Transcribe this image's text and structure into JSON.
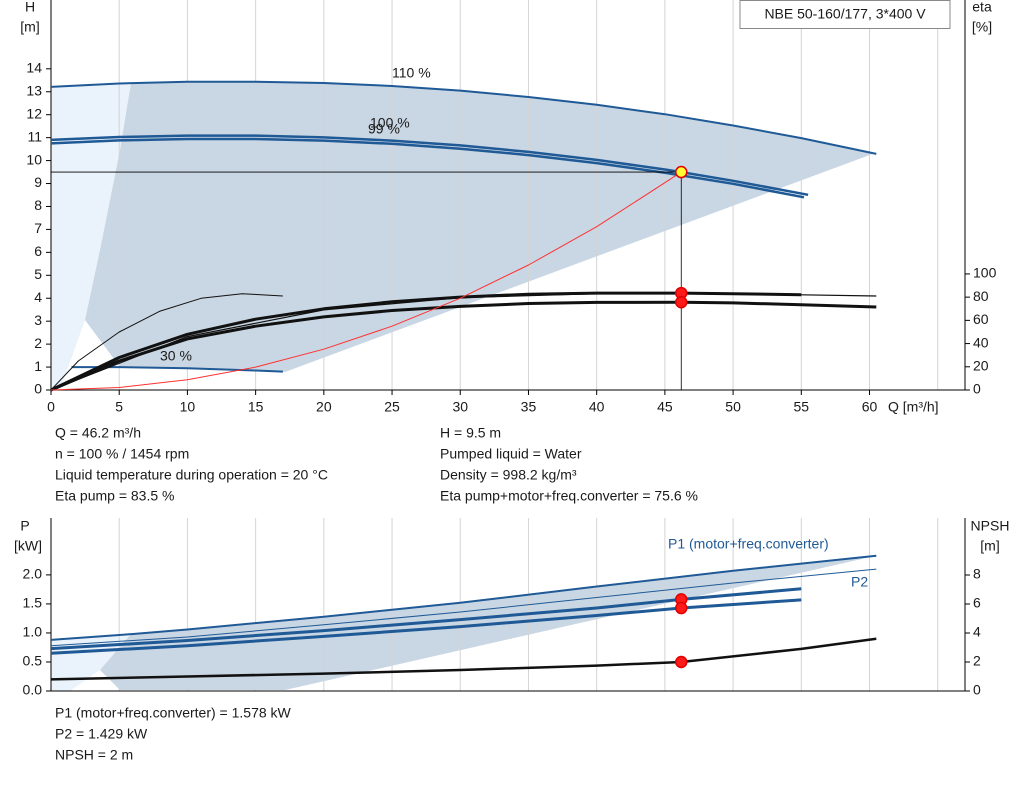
{
  "chart_data": [
    {
      "type": "line",
      "title": "NBE 50-160/177, 3*400 V",
      "x_label": "Q [m³/h]",
      "y_label": "H",
      "y_unit": "[m]",
      "y2_label": "eta",
      "y2_unit": "[%]",
      "xlim": [
        0,
        67
      ],
      "xticks": [
        0,
        5,
        10,
        15,
        20,
        25,
        30,
        35,
        40,
        45,
        50,
        55,
        60
      ],
      "xgrid": [
        5,
        10,
        15,
        20,
        25,
        30,
        35,
        40,
        45,
        50,
        55,
        60,
        65
      ],
      "ylim": [
        0,
        17
      ],
      "yticks": [
        0,
        1,
        2,
        3,
        4,
        5,
        6,
        7,
        8,
        9,
        10,
        11,
        12,
        13,
        14
      ],
      "y2lim": [
        0,
        336
      ],
      "y2ticks": [
        0,
        20,
        40,
        60,
        80,
        100
      ],
      "guide_lines": true,
      "series": [
        {
          "name": "110 %",
          "color": "#1f5a96",
          "x": [
            0,
            5,
            10,
            15,
            20,
            25,
            30,
            35,
            40,
            45,
            50,
            55,
            60.5
          ],
          "values": [
            13.21,
            13.36,
            13.44,
            13.44,
            13.38,
            13.25,
            13.05,
            12.77,
            12.43,
            12.02,
            11.53,
            10.98,
            10.29
          ]
        },
        {
          "name": "100 %",
          "color": "#1f5a96",
          "x": [
            0,
            5,
            10,
            15,
            20,
            25,
            30,
            35,
            40,
            45,
            46.2,
            50,
            55.5
          ],
          "values": [
            10.9,
            11.03,
            11.09,
            11.09,
            11.01,
            10.87,
            10.66,
            10.38,
            10.03,
            9.61,
            9.5,
            9.12,
            8.51
          ]
        },
        {
          "name": "99 %",
          "color": "#1f5a96",
          "x": [
            0,
            5,
            10,
            15,
            20,
            25,
            30,
            35,
            40,
            45,
            50,
            55.2
          ],
          "values": [
            10.75,
            10.88,
            10.94,
            10.94,
            10.87,
            10.73,
            10.52,
            10.24,
            9.89,
            9.47,
            8.99,
            8.4
          ]
        },
        {
          "name": "30 %",
          "color": "#1f5a96",
          "x": [
            1.5,
            5,
            10,
            15,
            17
          ],
          "values": [
            1.0,
            1.0,
            0.95,
            0.85,
            0.8
          ]
        },
        {
          "color": "#111111",
          "axis": "y2",
          "x": [
            0,
            2,
            5,
            8,
            11,
            14,
            17
          ],
          "values": [
            0,
            25,
            50,
            68,
            79,
            83,
            81
          ]
        },
        {
          "color": "#111111",
          "axis": "y2",
          "x": [
            0,
            10,
            20,
            30,
            40,
            50,
            60.5
          ],
          "values": [
            0,
            46,
            69,
            79.5,
            83,
            83,
            81
          ]
        },
        {
          "color": "#111111",
          "axis": "y2",
          "x": [
            0,
            5,
            10,
            15,
            20,
            25,
            30,
            35,
            40,
            46.2,
            50,
            55
          ],
          "values": [
            0,
            28,
            48,
            61,
            70,
            76,
            80,
            82.5,
            83.5,
            83.5,
            83,
            82
          ]
        },
        {
          "color": "#111111",
          "axis": "y2",
          "x": [
            0,
            5,
            10,
            15,
            20,
            25,
            30,
            35,
            40,
            46.2,
            50,
            55,
            60.5
          ],
          "values": [
            0,
            25,
            44,
            55,
            63,
            68.5,
            72,
            74.5,
            75.5,
            75.6,
            75,
            73.5,
            71.5
          ]
        },
        {
          "color": "#ff3030",
          "x": [
            0,
            5,
            10,
            15,
            20,
            25,
            30,
            35,
            40,
            46.2
          ],
          "values": [
            0,
            0.11,
            0.45,
            1.0,
            1.78,
            2.78,
            4.0,
            5.45,
            7.12,
            9.5
          ]
        }
      ],
      "markers": [
        {
          "x": 46.2,
          "y": 9.5,
          "color": "#ffff33"
        },
        {
          "x": 46.2,
          "y": 83.5,
          "axis": "y2",
          "color": "#ff1a1a"
        },
        {
          "x": 46.2,
          "y": 75.6,
          "axis": "y2",
          "color": "#ff1a1a"
        }
      ]
    },
    {
      "type": "line",
      "y_label": "P",
      "y_unit": "[kW]",
      "y2_label": "NPSH",
      "y2_unit": "[m]",
      "xlim": [
        0,
        67
      ],
      "xgrid": [
        5,
        10,
        15,
        20,
        25,
        30,
        35,
        40,
        45,
        50,
        55,
        60,
        65
      ],
      "ylim": [
        0,
        2.98
      ],
      "yticks": [
        {
          "value": 0,
          "label": "0.0"
        },
        0.5,
        {
          "value": 1,
          "label": "1.0"
        },
        1.5,
        {
          "value": 2,
          "label": "2.0"
        }
      ],
      "y2lim": [
        0,
        11.93
      ],
      "y2ticks": [
        0,
        2,
        4,
        6,
        8
      ],
      "series": [
        {
          "name": "P1 (motor+freq.converter)",
          "color": "#1f5a96",
          "x": [
            0,
            5.9,
            10,
            20,
            30,
            40,
            50,
            60.5
          ],
          "values": [
            0.88,
            0.98,
            1.06,
            1.28,
            1.52,
            1.8,
            2.07,
            2.33
          ]
        },
        {
          "name": "P2",
          "color": "#1f5a96",
          "x": [
            0,
            10,
            20,
            30,
            40,
            50,
            60.5
          ],
          "values": [
            0.78,
            0.93,
            1.14,
            1.36,
            1.61,
            1.86,
            2.1
          ]
        },
        {
          "color": "#1f5a96",
          "x": [
            0,
            10,
            20,
            30,
            40,
            46.2,
            55
          ],
          "values": [
            0.73,
            0.87,
            1.04,
            1.23,
            1.43,
            1.578,
            1.76
          ]
        },
        {
          "color": "#1f5a96",
          "x": [
            0,
            10,
            20,
            30,
            40,
            46.2,
            55
          ],
          "values": [
            0.65,
            0.78,
            0.94,
            1.11,
            1.3,
            1.429,
            1.57
          ]
        },
        {
          "color": "#111111",
          "axis": "y2",
          "x": [
            0,
            10,
            20,
            30,
            40,
            46.2,
            55,
            60.5
          ],
          "values": [
            0.8,
            1.0,
            1.2,
            1.45,
            1.75,
            2.0,
            2.9,
            3.6
          ]
        }
      ],
      "markers": [
        {
          "x": 46.2,
          "y": 1.578,
          "color": "#ff1a1a"
        },
        {
          "x": 46.2,
          "y": 1.429,
          "color": "#ff1a1a"
        },
        {
          "x": 46.2,
          "y": 2,
          "axis": "y2",
          "color": "#ff1a1a"
        }
      ]
    }
  ],
  "details": {
    "left": [
      "Q = 46.2 m³/h",
      "n = 100 % / 1454 rpm",
      "Liquid temperature during operation = 20 °C",
      "Eta pump = 83.5 %"
    ],
    "right": [
      "H = 9.5 m",
      "Pumped liquid = Water",
      "Density = 998.2 kg/m³",
      "Eta pump+motor+freq.converter = 75.6 %"
    ],
    "power": [
      "P1 (motor+freq.converter) = 1.578 kW",
      "P2 = 1.429 kW",
      "NPSH = 2 m"
    ]
  }
}
